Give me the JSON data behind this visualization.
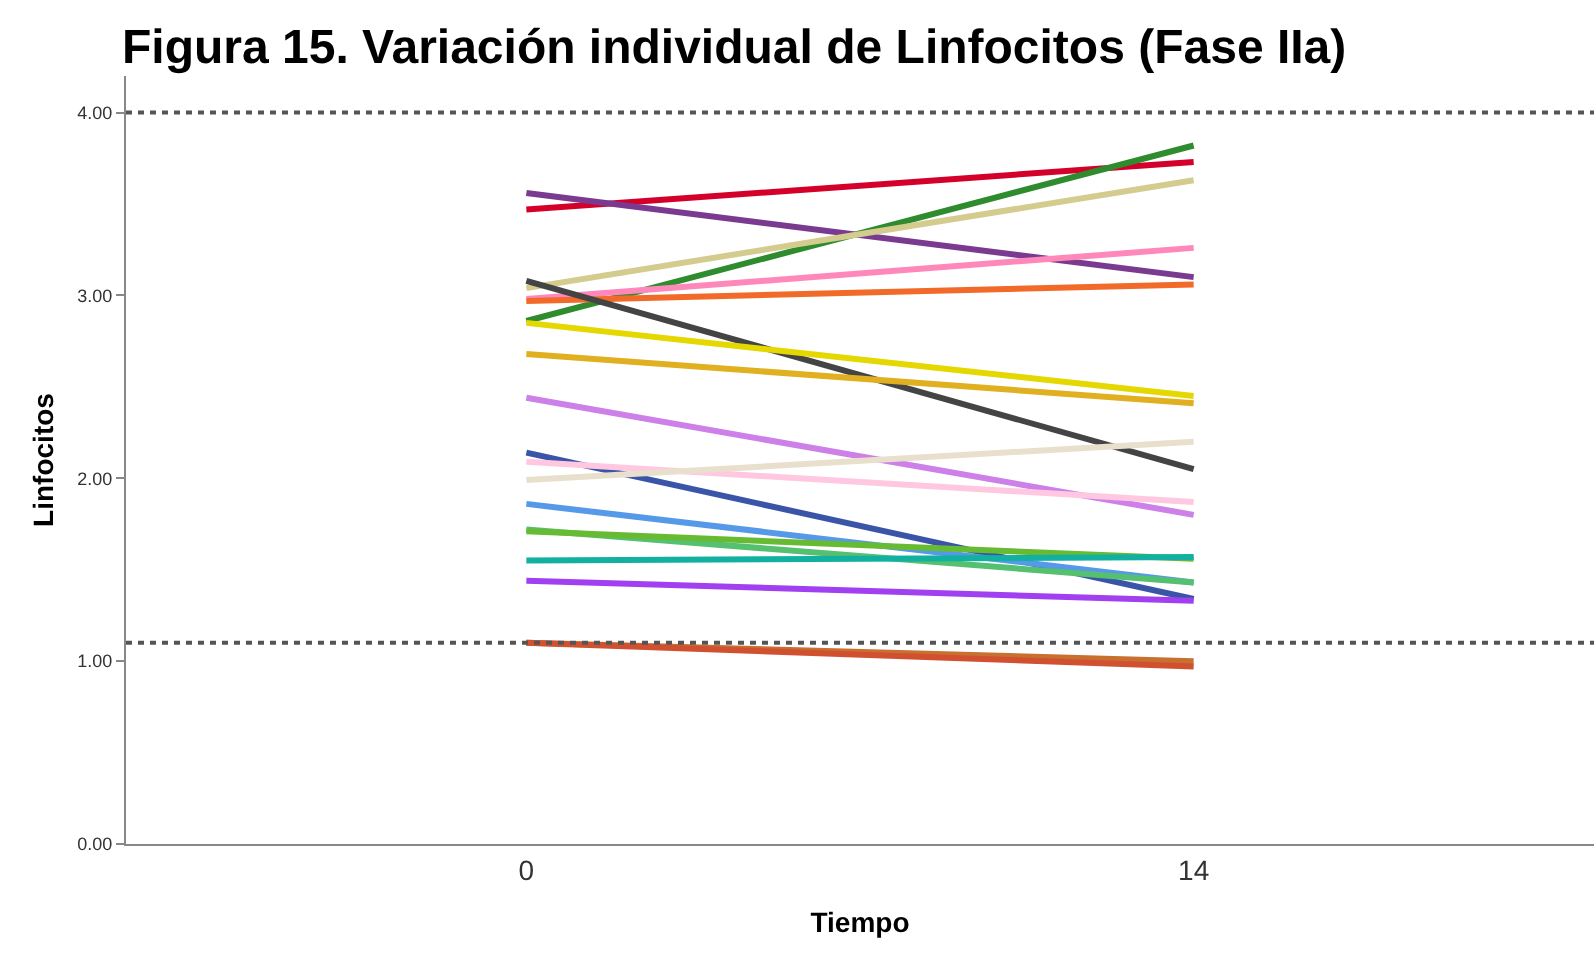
{
  "chart_data": {
    "type": "line",
    "title": "Figura 15. Variación individual de Linfocitos (Fase IIa)",
    "xlabel": "Tiempo",
    "ylabel": "Linfocitos",
    "x": [
      0,
      14
    ],
    "xlim": [
      -8.4,
      22.4
    ],
    "xticks": [
      0,
      14
    ],
    "ylim": [
      0,
      4.2
    ],
    "yticks": [
      {
        "value": 0,
        "label": "0.00"
      },
      {
        "value": 1,
        "label": "1.00"
      },
      {
        "value": 2,
        "label": "2.00"
      },
      {
        "value": 3,
        "label": "3.00"
      },
      {
        "value": 4,
        "label": "4.00"
      }
    ],
    "grid": false,
    "marker": "none",
    "line_style": "solid",
    "ref_lines": [
      {
        "axis": "y",
        "value": 4,
        "line_style": "dotted",
        "color": "#555555"
      },
      {
        "axis": "y",
        "value": 1.1,
        "line_style": "dotted",
        "color": "#555555"
      }
    ],
    "series": [
      {
        "color": "#d4002a",
        "values": [
          3.47,
          3.73
        ]
      },
      {
        "color": "#7a3a8f",
        "values": [
          3.56,
          3.1
        ]
      },
      {
        "color": "#2e8b2e",
        "values": [
          2.86,
          3.82
        ]
      },
      {
        "color": "#d4cc8e",
        "values": [
          3.04,
          3.63
        ]
      },
      {
        "color": "#ff88bb",
        "values": [
          2.98,
          3.26
        ]
      },
      {
        "color": "#f26a2a",
        "values": [
          2.97,
          3.06
        ]
      },
      {
        "color": "#444444",
        "values": [
          3.08,
          2.05
        ]
      },
      {
        "color": "#e5d800",
        "values": [
          2.85,
          2.45
        ]
      },
      {
        "color": "#e0b020",
        "values": [
          2.68,
          2.41
        ]
      },
      {
        "color": "#cc80e8",
        "values": [
          2.44,
          1.8
        ]
      },
      {
        "color": "#3a55a8",
        "values": [
          2.14,
          1.34
        ]
      },
      {
        "color": "#ffc8e0",
        "values": [
          2.09,
          1.87
        ]
      },
      {
        "color": "#e8e0cc",
        "values": [
          1.99,
          2.2
        ]
      },
      {
        "color": "#5599e8",
        "values": [
          1.86,
          1.43
        ]
      },
      {
        "color": "#55c070",
        "values": [
          1.72,
          1.43
        ]
      },
      {
        "color": "#66bb33",
        "values": [
          1.71,
          1.56
        ]
      },
      {
        "color": "#11b0a0",
        "values": [
          1.55,
          1.57
        ]
      },
      {
        "color": "#a040f0",
        "values": [
          1.44,
          1.33
        ]
      },
      {
        "color": "#c87030",
        "values": [
          1.1,
          1.0
        ]
      },
      {
        "color": "#d05030",
        "values": [
          1.1,
          0.97
        ]
      }
    ]
  }
}
